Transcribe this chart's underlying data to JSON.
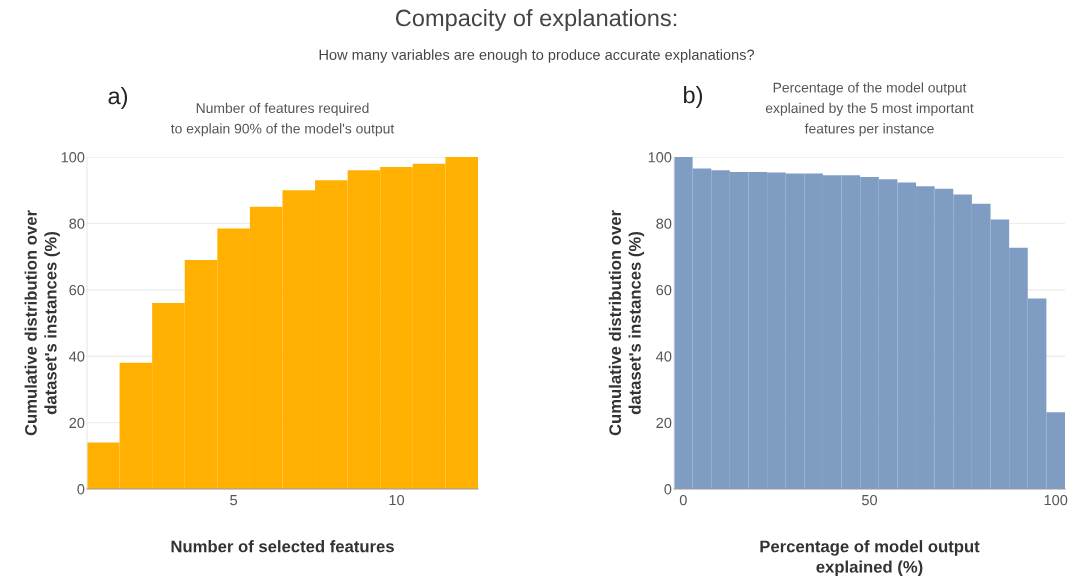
{
  "chart_data": [
    {
      "type": "histogram",
      "title": "Number of features required\nto explain 90% of the model's output",
      "xlabel": "Number of selected features",
      "ylabel": "Cumulative distribution over\ndataset's instances (%)",
      "bins": [
        0.5,
        1.5,
        2.5,
        3.5,
        4.5,
        5.5,
        6.5,
        7.5,
        8.5,
        9.5,
        10.5,
        11.5,
        12.5
      ],
      "values": [
        14,
        38,
        56,
        69,
        78.5,
        85,
        90,
        93,
        96,
        97,
        98,
        100
      ],
      "color": "#ffb000",
      "xlim": [
        0.5,
        12.5
      ],
      "xticks": [
        5,
        10
      ],
      "ylim": [
        0,
        100
      ],
      "yticks": [
        0,
        20,
        40,
        60,
        80,
        100
      ],
      "grid": "y",
      "annotations": [
        "Compacity of explanations:",
        "How many variables are enough to produce accurate explanations?",
        "a)"
      ]
    },
    {
      "type": "histogram",
      "title": "Percentage of the model output\nexplained by the 5 most important\nfeatures per instance",
      "xlabel": "Percentage of model output\nexplained (%)",
      "ylabel": "Cumulative distribution over\ndataset's instances (%)",
      "bins": [
        -2.5,
        2.5,
        7.5,
        12.5,
        17.5,
        22.5,
        27.5,
        32.5,
        37.5,
        42.5,
        47.5,
        52.5,
        57.5,
        62.5,
        67.5,
        72.5,
        77.5,
        82.5,
        87.5,
        92.5,
        97.5,
        102.5
      ],
      "values": [
        100,
        96.5,
        96,
        95.5,
        95.5,
        95.3,
        95,
        95,
        94.5,
        94.5,
        94,
        93.3,
        92.3,
        91.2,
        90.4,
        88.7,
        85.9,
        81.2,
        72.7,
        57.4,
        23.1
      ],
      "color": "#7f9dc2",
      "xlim": [
        -2.5,
        102.5
      ],
      "xticks": [
        0,
        50,
        100
      ],
      "ylim": [
        0,
        100
      ],
      "yticks": [
        0,
        20,
        40,
        60,
        80,
        100
      ],
      "grid": "y",
      "annotations": [
        "b)"
      ]
    }
  ]
}
